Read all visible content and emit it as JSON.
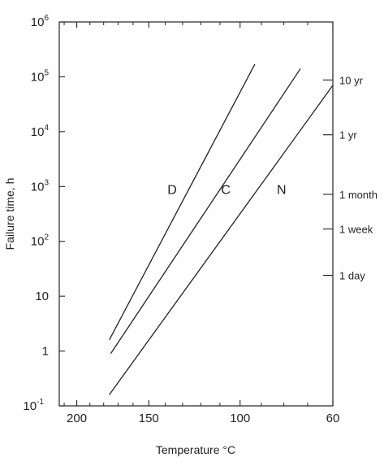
{
  "chart_data": {
    "type": "line",
    "xlabel": "Temperature °C",
    "ylabel": "Failure time, h",
    "x_axis": {
      "ticks": [
        200,
        150,
        100,
        60
      ],
      "tick_labels": [
        "200",
        "150",
        "100",
        "60"
      ],
      "reversed": true,
      "scale": "reciprocal",
      "unit": "°C",
      "lim": [
        214,
        60
      ]
    },
    "y_axis": {
      "scale": "log",
      "lim": [
        0.1,
        1000000
      ],
      "ticks": [
        0.1,
        1,
        10,
        100,
        1000,
        10000,
        100000,
        1000000
      ],
      "tick_labels": [
        {
          "base": "10",
          "exp": "-1"
        },
        {
          "base": "1",
          "exp": ""
        },
        {
          "base": "10",
          "exp": ""
        },
        {
          "base": "10",
          "exp": "2"
        },
        {
          "base": "10",
          "exp": "3"
        },
        {
          "base": "10",
          "exp": "4"
        },
        {
          "base": "10",
          "exp": "5"
        },
        {
          "base": "10",
          "exp": "6"
        }
      ]
    },
    "right_axis": {
      "labels": [
        {
          "label": "10 yr",
          "hours": 87600
        },
        {
          "label": "1 yr",
          "hours": 8760
        },
        {
          "label": "1 month",
          "hours": 720
        },
        {
          "label": "1 week",
          "hours": 168
        },
        {
          "label": "1 day",
          "hours": 24
        }
      ]
    },
    "series": [
      {
        "label": "D",
        "points": [
          [
            176,
            1.6
          ],
          [
            93,
            170000
          ]
        ]
      },
      {
        "label": "C",
        "points": [
          [
            175,
            0.9
          ],
          [
            73,
            140000
          ]
        ]
      },
      {
        "label": "N",
        "points": [
          [
            176,
            0.16
          ],
          [
            60,
            70000
          ]
        ]
      }
    ],
    "annotations": [
      {
        "text": "D",
        "x": 136,
        "y": 900
      },
      {
        "text": "C",
        "x": 107,
        "y": 900
      },
      {
        "text": "N",
        "x": 81,
        "y": 900
      }
    ],
    "grid": false,
    "minor_ticks": true
  }
}
